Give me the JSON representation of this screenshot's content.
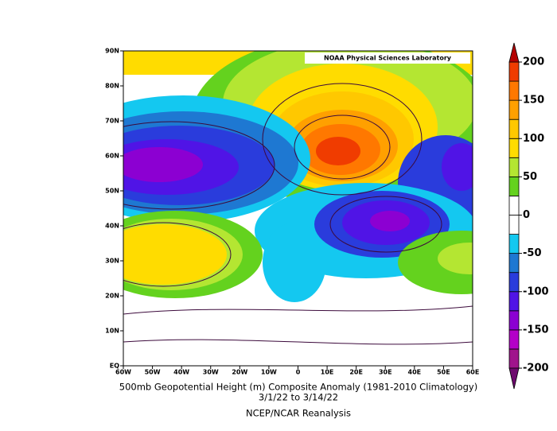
{
  "map": {
    "title": "500mb Geopotential Height (m) Composite Anomaly (1981-2010 Climatology)",
    "dates": "3/1/22   to 3/14/22",
    "source": "NCEP/NCAR Reanalysis",
    "credit": "NOAA Physical Sciences Laboratory",
    "lat_labels": [
      "90N",
      "80N",
      "70N",
      "60N",
      "50N",
      "40N",
      "30N",
      "20N",
      "10N",
      "EQ"
    ],
    "lon_labels": [
      "60W",
      "50W",
      "40W",
      "30W",
      "20W",
      "10W",
      "0",
      "10E",
      "20E",
      "30E",
      "40E",
      "50E",
      "60E"
    ]
  },
  "colorbar": {
    "range": [
      -200,
      200
    ],
    "ticks": [
      200,
      150,
      100,
      50,
      0,
      -50,
      -100,
      -150,
      -200
    ],
    "colors": [
      "#a0148c",
      "#b400c8",
      "#8c00d2",
      "#5014e6",
      "#2a3cdc",
      "#1e78d2",
      "#14c8f0",
      "#ffffff",
      "#ffffff",
      "#64d21e",
      "#b4e632",
      "#ffdc00",
      "#ffc800",
      "#ffa000",
      "#ff7800",
      "#f03c00"
    ],
    "over_color": "#b40000",
    "under_color": "#6e0a6e"
  }
}
